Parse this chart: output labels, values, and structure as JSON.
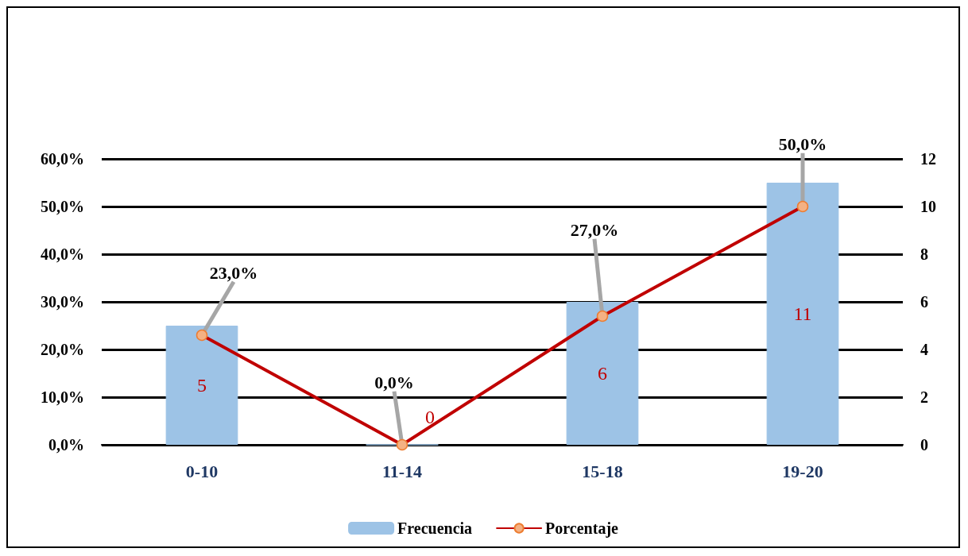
{
  "chart_data": {
    "type": "bar",
    "categories": [
      "0-10",
      "11-14",
      "15-18",
      "19-20"
    ],
    "series": [
      {
        "name": "Frecuencia",
        "axis": "y2",
        "color": "#9dc3e6",
        "values": [
          5,
          0,
          6,
          11
        ],
        "value_labels": [
          "5",
          "0",
          "6",
          "11"
        ]
      },
      {
        "name": "Porcentaje",
        "type": "line",
        "color": "#c00000",
        "marker": "circle",
        "values": [
          23,
          0,
          27,
          50
        ],
        "value_labels": [
          "23,0%",
          "0,0%",
          "27,0%",
          "50,0%"
        ]
      }
    ],
    "ylim": [
      0,
      60
    ],
    "yticks": [
      {
        "value": 0,
        "label": "0,0%"
      },
      {
        "value": 10,
        "label": "10,0%"
      },
      {
        "value": 20,
        "label": "20,0%"
      },
      {
        "value": 30,
        "label": "30,0%"
      },
      {
        "value": 40,
        "label": "40,0%"
      },
      {
        "value": 50,
        "label": "50,0%"
      },
      {
        "value": 60,
        "label": "60,0%"
      }
    ],
    "y2lim": [
      0,
      12
    ],
    "y2ticks": [
      0,
      2,
      4,
      6,
      8,
      10,
      12
    ],
    "grid": "y",
    "legend": "bottom"
  }
}
